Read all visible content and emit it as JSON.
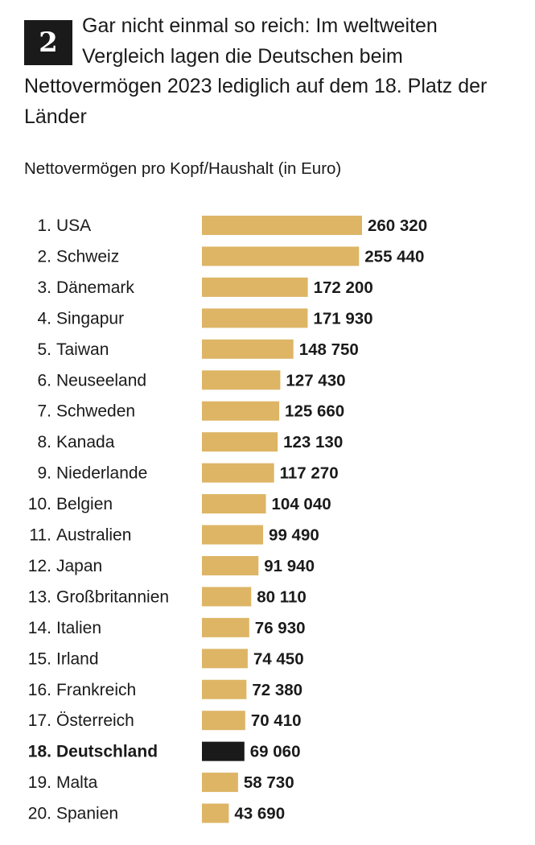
{
  "badge": "2",
  "headline": "Gar nicht einmal so reich: Im weltweiten Vergleich lagen die Deutschen beim Nettovermögen 2023 lediglich auf dem 18. Platz der Länder",
  "colors": {
    "bar": "#DDB565",
    "highlight": "#1A1A1A",
    "text": "#1A1A1A"
  },
  "chart_data": {
    "type": "bar",
    "orientation": "horizontal",
    "title": "",
    "subtitle": "Nettovermögen pro Kopf/Haushalt (in Euro)",
    "highlight": "18. Deutschland",
    "categories": [
      "1. USA",
      "2. Schweiz",
      "3. Dänemark",
      "4. Singapur",
      "5. Taiwan",
      "6. Neuseeland",
      "7. Schweden",
      "8. Kanada",
      "9. Niederlande",
      "10. Belgien",
      "11. Australien",
      "12. Japan",
      "13. Großbritannien",
      "14. Italien",
      "15. Irland",
      "16. Frankreich",
      "17. Österreich",
      "18. Deutschland",
      "19. Malta",
      "20. Spanien"
    ],
    "values": [
      260320,
      255440,
      172200,
      171930,
      148750,
      127430,
      125660,
      123130,
      117270,
      104040,
      99490,
      91940,
      80110,
      76930,
      74450,
      72380,
      70410,
      69060,
      58730,
      43690
    ],
    "value_labels": [
      "260 320",
      "255 440",
      "172 200",
      "171 930",
      "148 750",
      "127 430",
      "125 660",
      "123 130",
      "117 270",
      "104 040",
      "99 490",
      "91 940",
      "80 110",
      "76 930",
      "74 450",
      "72 380",
      "70 410",
      "69 060",
      "58 730",
      "43 690"
    ],
    "xlim": [
      0,
      260320
    ]
  }
}
